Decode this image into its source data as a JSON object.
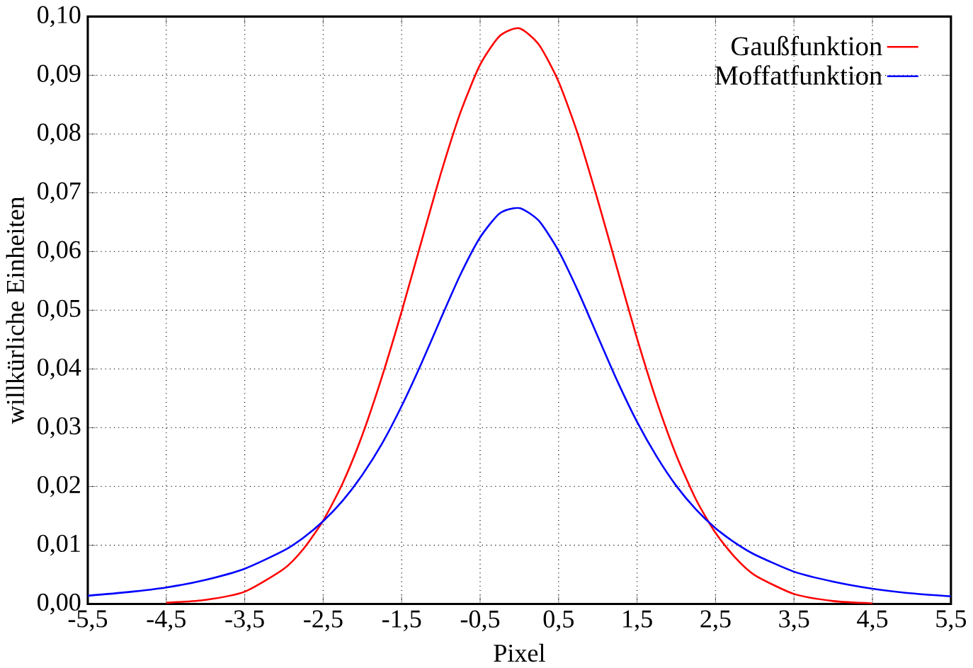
{
  "chart_data": {
    "type": "line",
    "xlabel": "Pixel",
    "ylabel": "willkürliche Einheiten",
    "xlim": [
      -5.5,
      5.5
    ],
    "ylim": [
      0,
      0.1
    ],
    "xticks": [
      {
        "value": -5.5,
        "label": "-5,5"
      },
      {
        "value": -4.5,
        "label": "-4,5"
      },
      {
        "value": -3.5,
        "label": "-3,5"
      },
      {
        "value": -2.5,
        "label": "-2,5"
      },
      {
        "value": -1.5,
        "label": "-1,5"
      },
      {
        "value": -0.5,
        "label": "-0,5"
      },
      {
        "value": 0.5,
        "label": "0,5"
      },
      {
        "value": 1.5,
        "label": "1,5"
      },
      {
        "value": 2.5,
        "label": "2,5"
      },
      {
        "value": 3.5,
        "label": "3,5"
      },
      {
        "value": 4.5,
        "label": "4,5"
      },
      {
        "value": 5.5,
        "label": "5,5"
      }
    ],
    "yticks": [
      {
        "value": 0,
        "label": "0,00"
      },
      {
        "value": 0.01,
        "label": "0,01"
      },
      {
        "value": 0.02,
        "label": "0,02"
      },
      {
        "value": 0.03,
        "label": "0,03"
      },
      {
        "value": 0.04,
        "label": "0,04"
      },
      {
        "value": 0.05,
        "label": "0,05"
      },
      {
        "value": 0.06,
        "label": "0,06"
      },
      {
        "value": 0.07,
        "label": "0,07"
      },
      {
        "value": 0.08,
        "label": "0,08"
      },
      {
        "value": 0.09,
        "label": "0,09"
      },
      {
        "value": 0.1,
        "label": "0,10"
      }
    ],
    "x": [
      -5.5,
      -5,
      -4.5,
      -4,
      -3.5,
      -3,
      -2.75,
      -2.5,
      -2.25,
      -2,
      -1.75,
      -1.5,
      -1.25,
      -1,
      -0.75,
      -0.5,
      -0.25,
      0,
      0.25,
      0.5,
      0.75,
      1,
      1.25,
      1.5,
      1.75,
      2,
      2.25,
      2.5,
      2.75,
      3,
      3.5,
      4,
      4.5,
      5,
      5.5
    ],
    "series": [
      {
        "name": "Gaußfunktion",
        "color": "#ff0000",
        "values": [
          null,
          null,
          0.0002,
          0.0007,
          0.0021,
          0.006,
          0.0094,
          0.0142,
          0.0206,
          0.0288,
          0.0387,
          0.0498,
          0.0616,
          0.0733,
          0.0837,
          0.0918,
          0.0967,
          0.098,
          0.0952,
          0.0889,
          0.0798,
          0.0687,
          0.0569,
          0.0452,
          0.0345,
          0.0253,
          0.0178,
          0.0121,
          0.0079,
          0.0049,
          0.0017,
          0.0005,
          0.0001,
          null,
          null
        ]
      },
      {
        "name": "Moffatfunktion",
        "color": "#0000ff",
        "values": [
          0.0014,
          0.002,
          0.0028,
          0.0041,
          0.006,
          0.0091,
          0.0113,
          0.0141,
          0.0176,
          0.022,
          0.0273,
          0.0337,
          0.0409,
          0.0486,
          0.0561,
          0.0624,
          0.0665,
          0.0674,
          0.0652,
          0.0601,
          0.0532,
          0.0455,
          0.0379,
          0.031,
          0.0251,
          0.0201,
          0.0161,
          0.0129,
          0.0104,
          0.0084,
          0.0055,
          0.0038,
          0.0026,
          0.0018,
          0.0013
        ]
      }
    ],
    "grid": true,
    "legend": "top right",
    "marker": "none",
    "line_style": "solid"
  }
}
